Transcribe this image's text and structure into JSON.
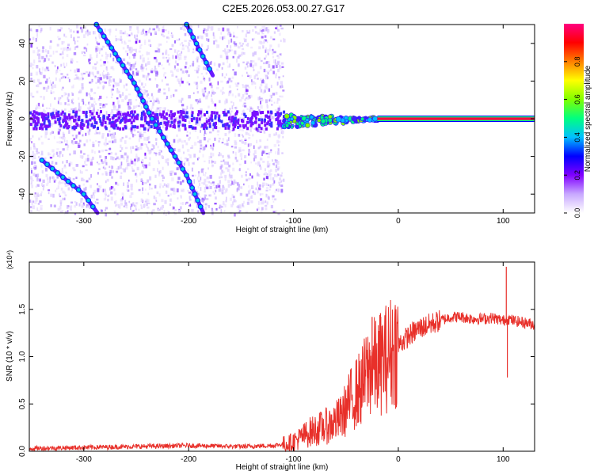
{
  "title": "C2E5.2026.053.00.27.G17",
  "chart_data": [
    {
      "type": "heatmap",
      "xlabel": "Height of straight line (km)",
      "ylabel": "Frequency (Hz)",
      "xlim": [
        -352,
        130
      ],
      "ylim": [
        -50,
        50
      ],
      "xticks": [
        -300,
        -200,
        -100,
        0,
        100
      ],
      "yticks": [
        -40,
        -20,
        0,
        20,
        40
      ],
      "colorbar": {
        "label": "Normalized spectral amplitude",
        "range": [
          0,
          1
        ],
        "ticks": [
          0.0,
          0.2,
          0.4,
          0.6,
          0.8
        ],
        "tick_labels": [
          "0.0",
          "0.2",
          "0.4",
          "0.6",
          "0.8"
        ],
        "colors": [
          "#ffffff",
          "#c8a8ff",
          "#8000ff",
          "#0000ff",
          "#00c0ff",
          "#00ff80",
          "#80ff00",
          "#ffff00",
          "#ff8000",
          "#ff0000",
          "#ff0080"
        ]
      },
      "features": {
        "noise_region_x": [
          -352,
          -110
        ],
        "carrier_line": {
          "freq": 0,
          "x_start": -110,
          "x_end": 130
        },
        "diagonal_traces": [
          {
            "x": [
              -288,
              -252,
              -235,
              -202,
              -186
            ],
            "y": [
              50,
              19,
              0,
              -30,
              -50
            ]
          },
          {
            "x": [
              -340,
              -300,
              -287
            ],
            "y": [
              -22,
              -40,
              -50
            ]
          },
          {
            "x": [
              -202,
              -177
            ],
            "y": [
              50,
              23
            ]
          }
        ]
      }
    },
    {
      "type": "line",
      "xlabel": "Height of straight line (km)",
      "ylabel": "SNR (10 * v/v)",
      "y_multiplier": "(x10⁴)",
      "xlim": [
        -352,
        130
      ],
      "ylim": [
        0,
        2
      ],
      "xticks": [
        -300,
        -200,
        -100,
        0,
        100
      ],
      "yticks": [
        0.0,
        0.5,
        1.0,
        1.5
      ],
      "ytick_labels": [
        "0.0",
        "0.5",
        "1.0",
        "1.5"
      ],
      "color": "#e8302a",
      "series": [
        {
          "x": [
            -352,
            -300,
            -250,
            -200,
            -150,
            -120,
            -105,
            -95,
            -85,
            -75,
            -65,
            -55,
            -50,
            -45,
            -40,
            -35,
            -30,
            -25,
            -20,
            -15,
            -10,
            -5,
            0,
            10,
            20,
            30,
            40,
            50,
            60,
            70,
            80,
            90,
            100,
            105,
            110,
            120,
            130
          ],
          "y": [
            0.03,
            0.04,
            0.05,
            0.06,
            0.05,
            0.06,
            0.08,
            0.13,
            0.2,
            0.24,
            0.28,
            0.35,
            0.45,
            0.55,
            0.62,
            0.68,
            0.82,
            0.9,
            0.88,
            0.96,
            1.0,
            1.08,
            1.12,
            1.22,
            1.3,
            1.34,
            1.38,
            1.42,
            1.42,
            1.4,
            1.4,
            1.41,
            1.38,
            1.4,
            1.38,
            1.36,
            1.34
          ]
        }
      ],
      "spikes": [
        {
          "x": -25,
          "y": 1.42
        },
        {
          "x": -17,
          "y": 1.46
        },
        {
          "x": 103,
          "y": 1.95
        },
        {
          "x": 104,
          "y": 0.78
        }
      ]
    }
  ]
}
